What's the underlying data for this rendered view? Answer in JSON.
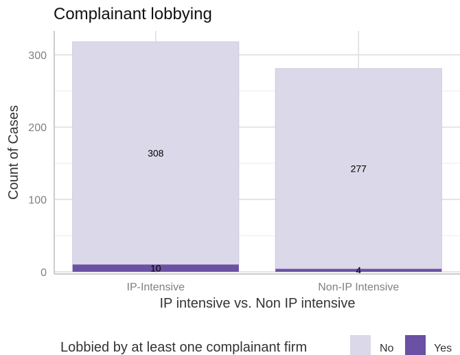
{
  "chart_data": {
    "type": "bar",
    "stacked": true,
    "title": "Complainant lobbying",
    "xlabel": "IP intensive vs. Non IP intensive",
    "ylabel": "Count of Cases",
    "categories": [
      "IP-Intensive",
      "Non-IP Intensive"
    ],
    "series": [
      {
        "name": "No",
        "values": [
          308,
          277
        ],
        "color": "#dad8e9",
        "labels": [
          "308",
          "277"
        ]
      },
      {
        "name": "Yes",
        "values": [
          10,
          4
        ],
        "color": "#6a51a3",
        "labels": [
          "10",
          "4"
        ]
      }
    ],
    "ylim": [
      -3,
      333
    ],
    "yticks": [
      0,
      100,
      200,
      300
    ],
    "ytick_labels": [
      "0",
      "100",
      "200",
      "300"
    ],
    "grid": true,
    "legend": {
      "title": "Lobbied by at least one complainant firm",
      "position": "bottom",
      "items": [
        "No",
        "Yes"
      ]
    }
  }
}
